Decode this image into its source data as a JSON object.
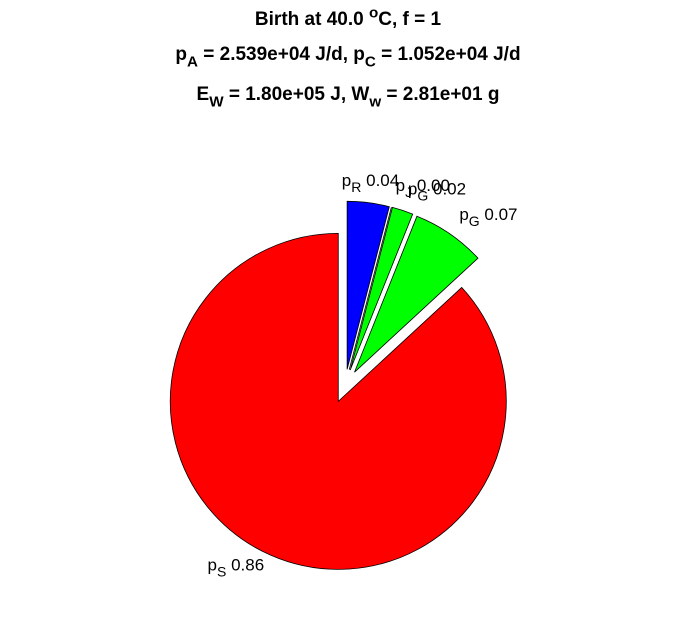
{
  "chart_data": {
    "type": "pie",
    "title": [
      [
        {
          "text": "Birth at 40.0 "
        },
        {
          "sup": "o"
        },
        {
          "text": "C, f = 1"
        }
      ],
      [
        {
          "text": "p"
        },
        {
          "sub": "A"
        },
        {
          "text": " = 2.539e+04 J/d, p"
        },
        {
          "sub": "C"
        },
        {
          "text": " = 1.052e+04 J/d"
        }
      ],
      [
        {
          "text": "E"
        },
        {
          "sub": "W"
        },
        {
          "text": " = 1.80e+05 J, W"
        },
        {
          "sub": "w"
        },
        {
          "text": " = 2.81e+01 g"
        }
      ]
    ],
    "categories": [
      {
        "text": "p",
        "sub": "R"
      },
      {
        "text": "p",
        "sub": "J"
      },
      {
        "text": "p",
        "sub": "G"
      },
      {
        "text": "p",
        "sub": "G"
      },
      {
        "text": "p",
        "sub": "S"
      }
    ],
    "values": [
      0.04,
      0.0,
      0.02,
      0.07,
      0.86
    ],
    "value_labels": [
      "0.04",
      "0.00",
      "0.02",
      "0.07",
      "0.86"
    ],
    "colors": [
      "#0000ff",
      "#ff00ff",
      "#00ff00",
      "#00ff00",
      "#ff0000"
    ]
  }
}
